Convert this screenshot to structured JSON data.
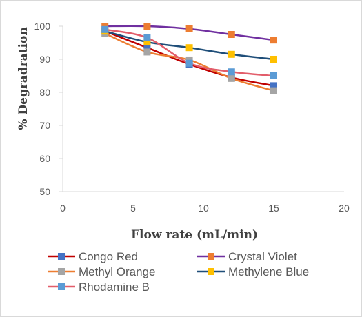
{
  "chart_data": {
    "type": "line",
    "xlabel": "Flow rate (mL/min)",
    "ylabel": "% Degradration",
    "xlim": [
      0,
      20
    ],
    "ylim": [
      50,
      100
    ],
    "xticks": [
      0,
      5,
      10,
      15,
      20
    ],
    "yticks": [
      50,
      60,
      70,
      80,
      90,
      100
    ],
    "grid": false,
    "legend_position": "bottom",
    "x": [
      3,
      6,
      9,
      12,
      15
    ],
    "series": [
      {
        "name": "Congo Red",
        "values": [
          98.5,
          93.5,
          88.5,
          84.5,
          82.0
        ],
        "line_color": "#c00000",
        "marker_color": "#4472c4"
      },
      {
        "name": "Crystal Violet",
        "values": [
          100.0,
          100.0,
          99.2,
          97.5,
          95.8
        ],
        "line_color": "#7030a0",
        "marker_color": "#ed7d31"
      },
      {
        "name": "Methyl Orange",
        "values": [
          97.8,
          92.2,
          89.8,
          84.2,
          80.5
        ],
        "line_color": "#ed7d31",
        "marker_color": "#a5a5a5"
      },
      {
        "name": "Methylene Blue",
        "values": [
          98.5,
          95.2,
          93.5,
          91.5,
          90.0
        ],
        "line_color": "#1f4e79",
        "marker_color": "#ffc000"
      },
      {
        "name": "Rhodamine B",
        "values": [
          99.0,
          96.5,
          88.8,
          86.2,
          85.0
        ],
        "line_color": "#e25d6a",
        "marker_color": "#5b9bd5"
      }
    ]
  }
}
